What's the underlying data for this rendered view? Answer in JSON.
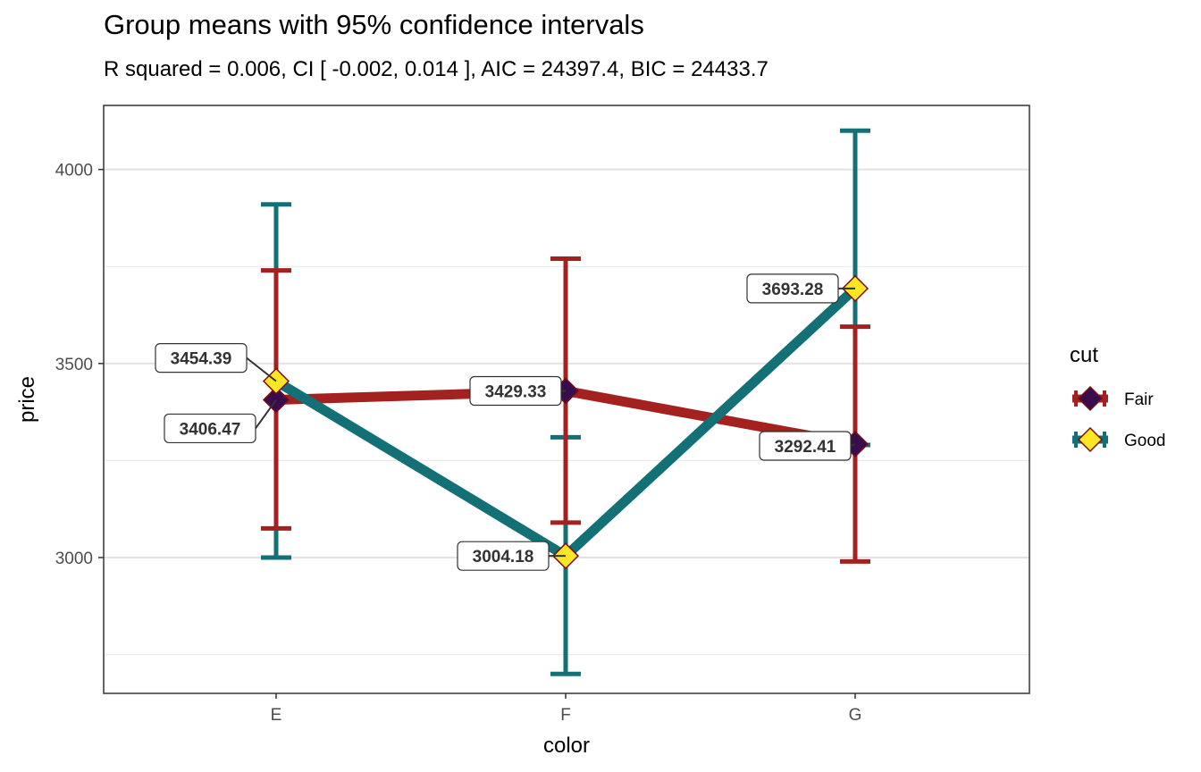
{
  "chart_data": {
    "type": "line",
    "title": "Group means with 95% confidence intervals",
    "subtitle": "R squared = 0.006, CI [ -0.002,  0.014 ], AIC = 24397.4, BIC = 24433.7",
    "xlabel": "color",
    "ylabel": "price",
    "categories": [
      "E",
      "F",
      "G"
    ],
    "ylim": [
      2650,
      4165
    ],
    "yticks": [
      3000,
      3500,
      4000
    ],
    "grid": true,
    "legend": {
      "title": "cut",
      "position": "right"
    },
    "series": [
      {
        "name": "Fair",
        "color": "#A3211F",
        "marker_fill": "#3B0B4F",
        "values": [
          3406.47,
          3429.33,
          3292.41
        ],
        "labels": [
          "3406.47",
          "3429.33",
          "3292.41"
        ],
        "ci_low": [
          3075,
          3090,
          2990
        ],
        "ci_high": [
          3740,
          3770,
          3595
        ]
      },
      {
        "name": "Good",
        "color": "#137076",
        "marker_fill": "#FDE725",
        "values": [
          3454.39,
          3004.18,
          3693.28
        ],
        "labels": [
          "3454.39",
          "3004.18",
          "3693.28"
        ],
        "ci_low": [
          3000,
          2700,
          3290
        ],
        "ci_high": [
          3910,
          3310,
          4100
        ]
      }
    ]
  }
}
